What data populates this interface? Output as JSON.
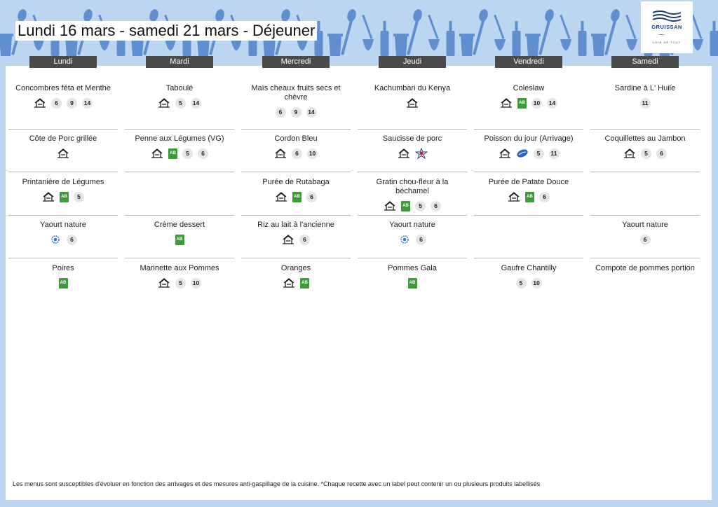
{
  "header": {
    "title": "Lundi 16 mars - samedi 21 mars  - Déjeuner",
    "logo_name": "GRUISSAN",
    "logo_sub": "LOIN DE TOUT"
  },
  "days": [
    "Lundi",
    "Mardi",
    "Mercredi",
    "Jeudi",
    "Vendredi",
    "Samedi"
  ],
  "menu": [
    [
      {
        "dish": "Concombres féta et Menthe",
        "icons": [
          "fait-maison-icon"
        ],
        "allergens": [
          "6",
          "9",
          "14"
        ]
      },
      {
        "dish": "Côte de Porc grillée",
        "icons": [
          "fait-maison-icon"
        ],
        "allergens": []
      },
      {
        "dish": "Printanière de  Légumes",
        "icons": [
          "fait-maison-icon",
          "bio-icon"
        ],
        "allergens": [
          "5"
        ]
      },
      {
        "dish": "Yaourt nature",
        "icons": [
          "label-qualite-icon"
        ],
        "allergens": [
          "6"
        ]
      },
      {
        "dish": "Poires",
        "icons": [
          "bio-icon"
        ],
        "allergens": []
      }
    ],
    [
      {
        "dish": "Taboulé",
        "icons": [
          "fait-maison-icon"
        ],
        "allergens": [
          "5",
          "14"
        ]
      },
      {
        "dish": "Penne aux Légumes (VG)",
        "icons": [
          "fait-maison-icon",
          "bio-icon"
        ],
        "allergens": [
          "5",
          "6"
        ]
      },
      null,
      {
        "dish": "Crème dessert",
        "icons": [
          "bio-icon"
        ],
        "allergens": []
      },
      {
        "dish": "Marinette aux Pommes",
        "icons": [
          "fait-maison-icon"
        ],
        "allergens": [
          "5",
          "10"
        ]
      }
    ],
    [
      {
        "dish": "Maïs cheaux fruits secs et chèvre",
        "icons": [],
        "allergens": [
          "6",
          "9",
          "14"
        ]
      },
      {
        "dish": "Cordon Bleu",
        "icons": [
          "fait-maison-icon"
        ],
        "allergens": [
          "6",
          "10"
        ]
      },
      {
        "dish": "Purée de Rutabaga",
        "icons": [
          "fait-maison-icon",
          "bio-icon"
        ],
        "allergens": [
          "6"
        ]
      },
      {
        "dish": "Riz au lait à l'ancienne",
        "icons": [
          "fait-maison-icon"
        ],
        "allergens": [
          "6"
        ]
      },
      {
        "dish": "Oranges",
        "icons": [
          "fait-maison-icon",
          "bio-icon"
        ],
        "allergens": []
      }
    ],
    [
      {
        "dish": "Kachumbari du Kenya",
        "icons": [
          "fait-maison-icon"
        ],
        "allergens": []
      },
      {
        "dish": "Saucisse de porc",
        "icons": [
          "fait-maison-icon",
          "porc-francais-icon"
        ],
        "allergens": []
      },
      {
        "dish": "Gratin chou-fleur à la béchamel",
        "icons": [
          "fait-maison-icon",
          "bio-icon"
        ],
        "allergens": [
          "5",
          "6"
        ]
      },
      {
        "dish": "Yaourt nature",
        "icons": [
          "label-qualite-icon"
        ],
        "allergens": [
          "6"
        ]
      },
      {
        "dish": "Pommes Gala",
        "icons": [
          "bio-icon"
        ],
        "allergens": []
      }
    ],
    [
      {
        "dish": "Coleslaw",
        "icons": [
          "fait-maison-icon",
          "bio-icon"
        ],
        "allergens": [
          "10",
          "14"
        ]
      },
      {
        "dish": "Poisson du jour (Arrivage)",
        "icons": [
          "fait-maison-icon",
          "peche-durable-icon"
        ],
        "allergens": [
          "5",
          "11"
        ]
      },
      {
        "dish": "Purée de Patate Douce",
        "icons": [
          "fait-maison-icon",
          "bio-icon"
        ],
        "allergens": [
          "6"
        ]
      },
      null,
      {
        "dish": "Gaufre  Chantilly",
        "icons": [],
        "allergens": [
          "5",
          "10"
        ]
      }
    ],
    [
      {
        "dish": "Sardine à L' Huile",
        "icons": [],
        "allergens": [
          "11"
        ]
      },
      {
        "dish": "Coquillettes au Jambon",
        "icons": [
          "fait-maison-icon"
        ],
        "allergens": [
          "5",
          "6"
        ]
      },
      null,
      {
        "dish": "Yaourt nature",
        "icons": [],
        "allergens": [
          "6"
        ]
      },
      {
        "dish": "Compote de pommes portion",
        "icons": [],
        "allergens": []
      }
    ]
  ],
  "footer": {
    "text": "Les menus sont susceptibles d'évoluer en fonction des arrivages et des mesures anti-gaspillage de la cuisine. *Chaque recette avec un label peut contenir un ou plusieurs produits labellisés"
  },
  "colors": {
    "background": "#bcd6f1",
    "pattern": "#5f8fd0",
    "day_header": "#4a4a4a",
    "bio": "#3f9b3a",
    "allergen_badge": "#e5e5e5"
  }
}
